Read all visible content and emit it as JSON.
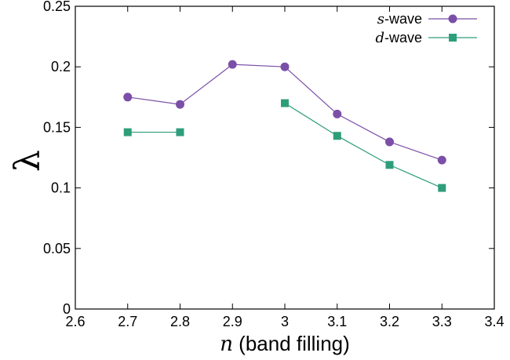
{
  "chart_data": {
    "type": "line",
    "xlabel_var": "n",
    "xlabel_rest": " (band filling)",
    "ylabel": "λ",
    "xlim": [
      2.6,
      3.4
    ],
    "ylim": [
      0,
      0.25
    ],
    "xticks": [
      "2.6",
      "2.7",
      "2.8",
      "2.9",
      "3",
      "3.1",
      "3.2",
      "3.3",
      "3.4"
    ],
    "yticks": [
      "0",
      "0.05",
      "0.1",
      "0.15",
      "0.2",
      "0.25"
    ],
    "legend_position": "top-right",
    "series": [
      {
        "name_var": "s",
        "name_rest": "-wave",
        "color": "#7b4fa8",
        "marker": "circle",
        "segments": [
          [
            [
              2.7,
              0.175
            ],
            [
              2.8,
              0.169
            ],
            [
              2.9,
              0.202
            ],
            [
              3.0,
              0.2
            ],
            [
              3.1,
              0.161
            ],
            [
              3.2,
              0.138
            ],
            [
              3.3,
              0.123
            ]
          ]
        ]
      },
      {
        "name_var": "d",
        "name_rest": "-wave",
        "color": "#2e9e7a",
        "marker": "square",
        "segments": [
          [
            [
              2.7,
              0.146
            ],
            [
              2.8,
              0.146
            ]
          ],
          [
            [
              3.0,
              0.17
            ],
            [
              3.1,
              0.143
            ],
            [
              3.2,
              0.119
            ],
            [
              3.3,
              0.1
            ]
          ]
        ]
      }
    ]
  }
}
